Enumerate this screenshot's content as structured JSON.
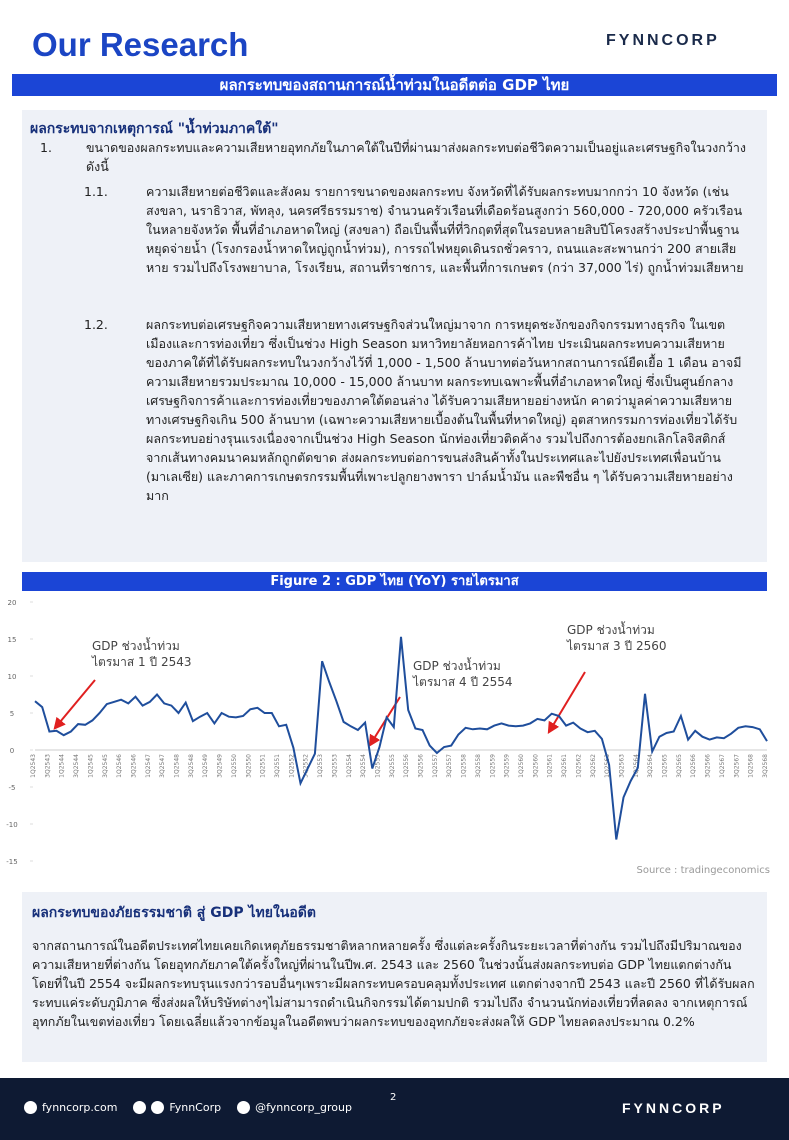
{
  "header": {
    "title": "Our Research",
    "logo": "FYNNCORP",
    "banner": "ผลกระทบของสถานการณ์น้ำท่วมในอดีตต่อ GDP ไทย"
  },
  "section1": {
    "heading": "ผลกระทบจากเหตุการณ์ \"น้ำท่วมภาคใต้\"",
    "items": [
      {
        "num": "1.",
        "text": "ขนาดของผลกระทบและความเสียหายอุทกภัยในภาคใต้ในปีที่ผ่านมาส่งผลกระทบต่อชีวิตความเป็นอยู่และเศรษฐกิจในวงกว้าง ดังนี้",
        "subitems": [
          {
            "num": "1.1.",
            "text": "ความเสียหายต่อชีวิตและสังคม รายการขนาดของผลกระทบ จังหวัดที่ได้รับผลกระทบมากกว่า 10 จังหวัด (เช่น สงขลา, นราธิวาส, พัทลุง, นครศรีธรรมราช) จำนวนครัวเรือนที่เดือดร้อนสูงกว่า 560,000 - 720,000 ครัวเรือนในหลายจังหวัด พื้นที่อำเภอหาดใหญ่ (สงขลา) ถือเป็นพื้นที่ที่วิกฤตที่สุดในรอบหลายสิบปีโครงสร้างประปาพื้นฐานหยุดจ่ายน้ำ (โรงกรองน้ำหาดใหญ่ถูกน้ำท่วม), การรถไฟหยุดเดินรถชั่วคราว, ถนนและสะพานกว่า 200 สายเสียหาย รวมไปถึงโรงพยาบาล, โรงเรียน, สถานที่ราชการ, และพื้นที่การเกษตร (กว่า 37,000 ไร่) ถูกน้ำท่วมเสียหาย"
          },
          {
            "num": "1.2.",
            "text": "ผลกระทบต่อเศรษฐกิจความเสียหายทางเศรษฐกิจส่วนใหญ่มาจาก การหยุดชะงักของกิจกรรมทางธุรกิจ ในเขตเมืองและการท่องเที่ยว ซึ่งเป็นช่วง High Season มหาวิทยาลัยหอการค้าไทย ประเมินผลกระทบความเสียหายของภาคใต้ที่ได้รับผลกระทบในวงกว้างไว้ที่ 1,000 - 1,500 ล้านบาทต่อวันหากสถานการณ์ยืดเยื้อ 1 เดือน อาจมีความเสียหายรวมประมาณ 10,000 - 15,000 ล้านบาท ผลกระทบเฉพาะพื้นที่อำเภอหาดใหญ่ ซึ่งเป็นศูนย์กลางเศรษฐกิจการค้าและการท่องเที่ยวของภาคใต้ตอนล่าง ได้รับความเสียหายอย่างหนัก คาดว่ามูลค่าความเสียหายทางเศรษฐกิจเกิน 500 ล้านบาท (เฉพาะความเสียหายเบื้องต้นในพื้นที่หาดใหญ่) อุตสาหกรรมการท่องเที่ยวได้รับผลกระทบอย่างรุนแรงเนื่องจากเป็นช่วง High Season นักท่องเที่ยวติดค้าง รวมไปถึงการต้องยกเลิกโลจิสติกส์จากเส้นทางคมนาคมหลักถูกตัดขาด ส่งผลกระทบต่อการขนส่งสินค้าทั้งในประเทศและไปยังประเทศเพื่อนบ้าน (มาเลเซีย) และภาคการเกษตรกรรมพื้นที่เพาะปลูกยางพารา ปาล์มน้ำมัน และพืชอื่น ๆ ได้รับความเสียหายอย่างมาก"
          }
        ]
      }
    ]
  },
  "chart_data": {
    "type": "line",
    "title": "Figure 2 : GDP ไทย (YoY) รายไตรมาส",
    "categories": [
      "1Q2543",
      null,
      "3Q2543",
      null,
      "1Q2544",
      null,
      "3Q2544",
      null,
      "1Q2545",
      null,
      "3Q2545",
      null,
      "1Q2546",
      null,
      "3Q2546",
      null,
      "1Q2547",
      null,
      "3Q2547",
      null,
      "1Q2548",
      null,
      "3Q2548",
      null,
      "1Q2549",
      null,
      "3Q2549",
      null,
      "1Q2550",
      null,
      "3Q2550",
      null,
      "1Q2551",
      null,
      "3Q2551",
      null,
      "1Q2552",
      null,
      "3Q2552",
      null,
      "1Q2553",
      null,
      "3Q2553",
      null,
      "1Q2554",
      null,
      "3Q2554",
      null,
      "1Q2555",
      null,
      "3Q2555",
      null,
      "1Q2556",
      null,
      "3Q2556",
      null,
      "1Q2557",
      null,
      "3Q2557",
      null,
      "1Q2558",
      null,
      "3Q2558",
      null,
      "1Q2559",
      null,
      "3Q2559",
      null,
      "1Q2560",
      null,
      "3Q2560",
      null,
      "1Q2561",
      null,
      "3Q2561",
      null,
      "1Q2562",
      null,
      "3Q2562",
      null,
      "1Q2563",
      null,
      "3Q2563",
      null,
      "1Q2564",
      null,
      "3Q2564",
      null,
      "1Q2565",
      null,
      "3Q2565",
      null,
      "1Q2566",
      null,
      "3Q2566",
      null,
      "1Q2567",
      null,
      "3Q2567",
      null,
      "1Q2568",
      null,
      "3Q2568"
    ],
    "values": [
      6.6,
      5.8,
      2.5,
      2.6,
      2.0,
      2.5,
      3.5,
      3.4,
      4.0,
      5.0,
      6.2,
      6.5,
      6.8,
      6.3,
      7.2,
      6.0,
      6.5,
      7.5,
      6.3,
      6.0,
      5.0,
      6.4,
      3.9,
      4.5,
      5.0,
      3.6,
      5.0,
      4.5,
      4.4,
      4.6,
      5.5,
      5.7,
      5.0,
      5.0,
      3.2,
      3.4,
      0.3,
      -4.5,
      -2.5,
      -0.5,
      12.0,
      9.2,
      6.6,
      3.8,
      3.2,
      2.7,
      3.7,
      -2.5,
      0.4,
      4.4,
      3.1,
      15.3,
      5.4,
      2.9,
      2.7,
      0.6,
      -0.4,
      0.4,
      0.6,
      2.1,
      3.0,
      2.8,
      2.9,
      2.8,
      3.3,
      3.6,
      3.3,
      3.2,
      3.3,
      3.6,
      4.2,
      4.0,
      4.9,
      4.6,
      3.3,
      3.7,
      2.9,
      2.4,
      2.6,
      1.5,
      -2.0,
      -12.1,
      -6.4,
      -4.2,
      -2.4,
      7.6,
      -0.2,
      1.8,
      2.3,
      2.5,
      4.6,
      1.4,
      2.6,
      1.8,
      1.4,
      1.7,
      1.6,
      2.2,
      3.0,
      3.2,
      3.1,
      2.8,
      1.2
    ],
    "color": "#1f4e9c",
    "ylim": [
      -15,
      20
    ],
    "yticks": [
      -15,
      -10,
      -5,
      0,
      5,
      10,
      15,
      20
    ],
    "annotations": [
      [
        "GDP ช่วงน้ำท่วม",
        "ไตรมาส 1 ปี 2543"
      ],
      [
        "GDP ช่วงน้ำท่วม",
        "ไตรมาส 4 ปี 2554"
      ],
      [
        "GDP ช่วงน้ำท่วม",
        "ไตรมาส 3 ปี 2560"
      ]
    ],
    "source": "Source : tradingeconomics"
  },
  "section2": {
    "heading": "ผลกระทบของภัยธรรมชาติ สู่ GDP ไทยในอดีต",
    "body": "จากสถานการณ์ในอดีตประเทศไทยเคยเกิดเหตุภัยธรรมชาติหลากหลายครั้ง ซึ่งแต่ละครั้งกินระยะเวลาที่ต่างกัน รวมไปถึงมีปริมาณของความเสียหายที่ต่างกัน โดยอุทกภัยภาคใต้ครั้งใหญ่ที่ผ่านในปีพ.ศ. 2543 และ 2560 ในช่วงนั้นส่งผลกระทบต่อ GDP ไทยแตกต่างกัน โดยที่ในปี 2554 จะมีผลกระทบรุนแรงกว่ารอบอื่นๆเพราะมีผลกระทบครอบคลุมทั้งประเทศ แตกต่างจากปี 2543 และปี 2560 ที่ได้รับผลกระทบแค่ระดับภูมิภาค ซึ่งส่งผลให้บริษัทต่างๆไม่สามารถดำเนินกิจกรรมได้ตามปกติ รวมไปถึง จำนวนนักท่องเที่ยวที่ลดลง จากเหตุการณ์อุทกภัยในเขตท่องเที่ยว โดยเฉลี่ยแล้วจากข้อมูลในอดีตพบว่าผลกระทบของอุทกภัยจะส่งผลให้ GDP ไทยลดลงประมาณ 0.2%"
  },
  "footer": {
    "website": "fynncorp.com",
    "facebook": "FynnCorp",
    "line": "@fynncorp_group",
    "page": "2",
    "logo": "FYNNCORP"
  }
}
